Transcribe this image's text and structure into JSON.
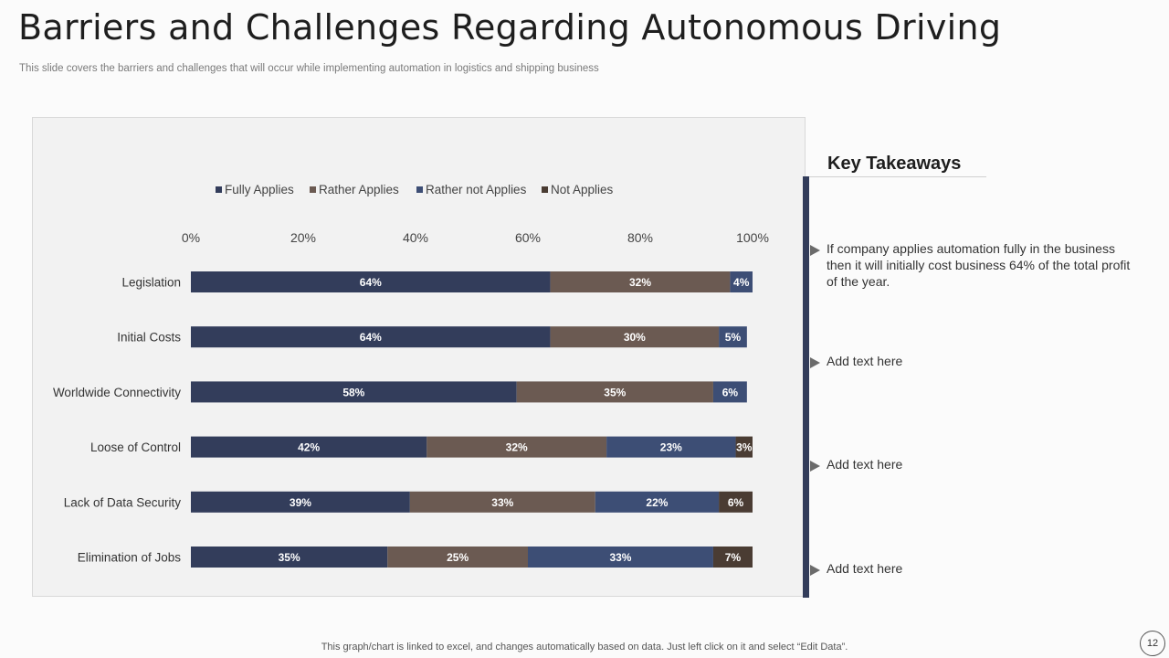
{
  "slide": {
    "title": "Barriers and Challenges Regarding Autonomous Driving",
    "subtitle": "This slide covers the barriers and challenges that will occur while implementing automation in logistics and shipping business",
    "footer": "This graph/chart is linked to excel,  and changes automatically based on data. Just left click on it and select “Edit Data”.",
    "page_number": "12"
  },
  "takeaways": {
    "heading": "Key Takeaways",
    "items": [
      "If company applies automation fully in the business then it will initially  cost business 64% of the total profit of the year.",
      "Add text here",
      "Add text here",
      "Add text here"
    ]
  },
  "chart_data": {
    "type": "bar",
    "orientation": "horizontal",
    "stacked": true,
    "title": "",
    "xlabel": "",
    "ylabel": "",
    "xlim": [
      0,
      100
    ],
    "x_ticks": [
      "0%",
      "20%",
      "40%",
      "60%",
      "80%",
      "100%"
    ],
    "legend_position": "top",
    "categories": [
      "Legislation",
      "Initial Costs",
      "Worldwide Connectivity",
      "Loose of Control",
      "Lack of Data Security",
      "Elimination of Jobs"
    ],
    "series": [
      {
        "name": "Fully Applies",
        "color": "#333d5b",
        "values": [
          64,
          64,
          58,
          42,
          39,
          35
        ]
      },
      {
        "name": "Rather Applies",
        "color": "#6b5a52",
        "values": [
          32,
          30,
          35,
          32,
          33,
          25
        ]
      },
      {
        "name": "Rather not Applies",
        "color": "#3d4e75",
        "values": [
          4,
          5,
          6,
          23,
          22,
          33
        ]
      },
      {
        "name": "Not Applies",
        "color": "#4a3c33",
        "values": [
          0,
          0,
          0,
          3,
          6,
          7
        ]
      }
    ]
  }
}
